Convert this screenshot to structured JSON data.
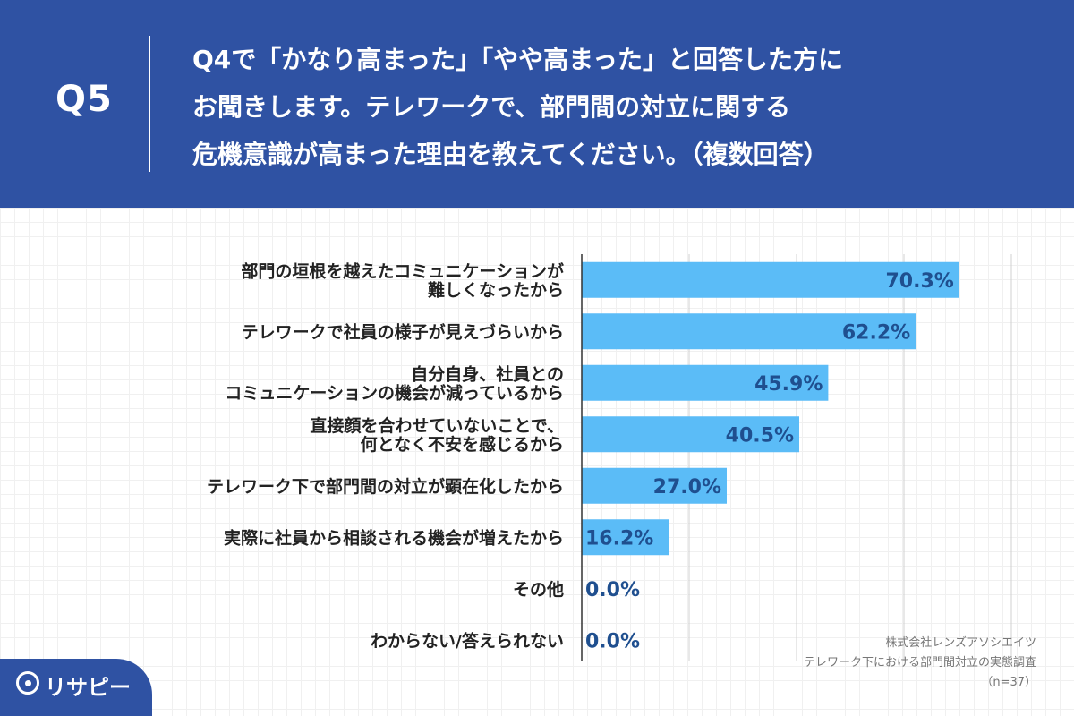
{
  "question": {
    "label": "Q5",
    "lines": [
      "Q4で「かなり高まった」「やや高まった」と回答した方に",
      "お聞きします。テレワークで、部門間の対立に関する",
      "危機意識が高まった理由を教えてください。（複数回答）"
    ]
  },
  "chart_data": {
    "type": "bar",
    "orientation": "horizontal",
    "categories": [
      [
        "部門の垣根を越えたコミュニケーションが",
        "難しくなったから"
      ],
      [
        "テレワークで社員の様子が見えづらいから"
      ],
      [
        "自分自身、社員との",
        "コミュニケーションの機会が減っているから"
      ],
      [
        "直接顔を合わせていないことで、",
        "何となく不安を感じるから"
      ],
      [
        "テレワーク下で部門間の対立が顕在化したから"
      ],
      [
        "実際に社員から相談される機会が増えたから"
      ],
      [
        "その他"
      ],
      [
        "わからない/答えられない"
      ]
    ],
    "values": [
      70.3,
      62.2,
      45.9,
      40.5,
      27.0,
      16.2,
      0.0,
      0.0
    ],
    "value_labels": [
      "70.3%",
      "62.2%",
      "45.9%",
      "40.5%",
      "27.0%",
      "16.2%",
      "0.0%",
      "0.0%"
    ],
    "xlim": [
      0,
      80
    ],
    "grid": true,
    "bar_color": "#5bbcf7",
    "label_color": "#1f4f8f"
  },
  "source": {
    "company": "株式会社レンズアソシエイツ",
    "survey": "テレワーク下における部門間対立の実態調査",
    "n": "（n=37）"
  },
  "logo": {
    "text": "リサピー"
  }
}
